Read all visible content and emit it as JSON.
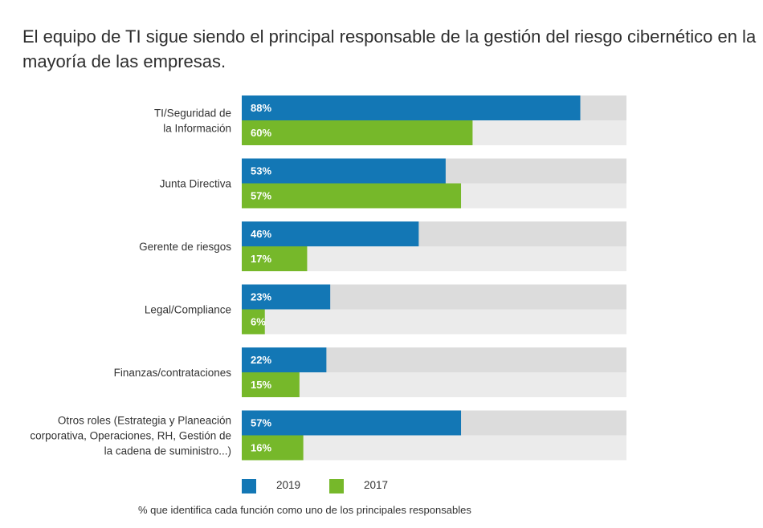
{
  "title": "El equipo de TI sigue siendo el principal responsable de la gestión del riesgo cibernético en la mayoría de las empresas.",
  "footnote": "% que identifica cada función como uno de los principales responsables",
  "colors": {
    "series_2019": "#1377b5",
    "series_2017": "#76b82a",
    "track_2019": "#dcdcdc",
    "track_2017": "#ebebeb"
  },
  "chart_data": {
    "type": "bar",
    "orientation": "horizontal",
    "title": "El equipo de TI sigue siendo el principal responsable de la gestión del riesgo cibernético en la mayoría de las empresas.",
    "xlabel": "",
    "ylabel": "",
    "xlim": [
      0,
      100
    ],
    "legend": "bottom",
    "categories": [
      [
        "TI/Seguridad de",
        "la Información"
      ],
      [
        "Junta Directiva"
      ],
      [
        "Gerente de riesgos"
      ],
      [
        "Legal/Compliance"
      ],
      [
        "Finanzas/contrataciones"
      ],
      [
        "Otros roles (Estrategia y Planeación",
        "corporativa, Operaciones, RH, Gestión de",
        "la cadena de suministro...)"
      ]
    ],
    "series": [
      {
        "name": "2019",
        "values": [
          88,
          53,
          46,
          23,
          22,
          57
        ],
        "labels": [
          "88%",
          "53%",
          "46%",
          "23%",
          "22%",
          "57%"
        ]
      },
      {
        "name": "2017",
        "values": [
          60,
          57,
          17,
          6,
          15,
          16
        ],
        "labels": [
          "60%",
          "57%",
          "17%",
          "6%",
          "15%",
          "16%"
        ]
      }
    ]
  }
}
